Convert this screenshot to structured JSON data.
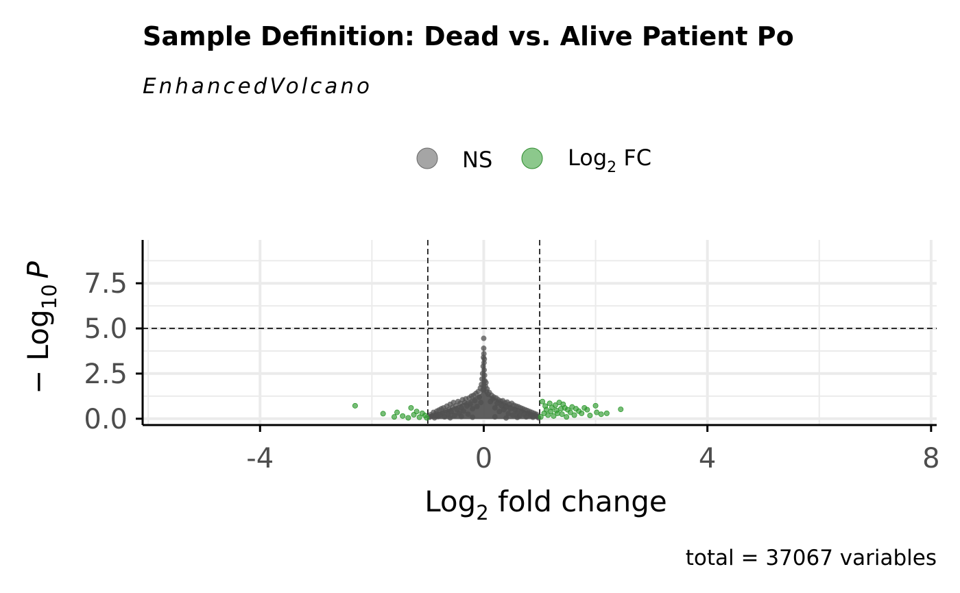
{
  "chart_data": {
    "type": "scatter",
    "title": "Sample Definition: Dead vs. Alive Patient Po",
    "subtitle": "EnhancedVolcano",
    "caption": "total = 37067 variables",
    "xlabel": {
      "base": "Log",
      "sub": "2",
      "rest": " fold change"
    },
    "ylabel": {
      "prefix": "− Log",
      "sub": "10",
      "suffix": "P"
    },
    "xlim": [
      -6.1,
      8.1
    ],
    "ylim": [
      -0.35,
      9.9
    ],
    "x_ticks": [
      -4,
      0,
      4,
      8
    ],
    "x_tick_labels": [
      "-4",
      "0",
      "4",
      "8"
    ],
    "y_ticks": [
      0,
      2.5,
      5,
      7.5
    ],
    "y_tick_labels": [
      "0.0",
      "2.5",
      "5.0",
      "7.5"
    ],
    "x_minor_ticks": [
      -6,
      -2,
      2,
      6
    ],
    "y_minor_ticks": [
      1.25,
      3.75,
      6.25,
      8.75
    ],
    "fc_cutoff": [
      -1,
      1
    ],
    "p_cutoff": 5,
    "legend": {
      "position": "top",
      "entries": [
        {
          "label": "NS",
          "color": "#7f7f7f"
        },
        {
          "label": "Log",
          "sub": "2",
          "after": " FC",
          "color": "#2e9a2e"
        }
      ]
    },
    "colors": {
      "ns": "#505050",
      "fc": "#2e9a2e",
      "grid": "#ebebeb",
      "axis": "#000000"
    },
    "series": [
      {
        "name": "NS",
        "points": [
          [
            -0.97,
            0.08
          ],
          [
            -0.95,
            0.22
          ],
          [
            -0.92,
            0.15
          ],
          [
            -0.9,
            0.35
          ],
          [
            -0.88,
            0.05
          ],
          [
            -0.86,
            0.28
          ],
          [
            -0.84,
            0.42
          ],
          [
            -0.82,
            0.12
          ],
          [
            -0.8,
            0.48
          ],
          [
            -0.78,
            0.2
          ],
          [
            -0.76,
            0.55
          ],
          [
            -0.74,
            0.32
          ],
          [
            -0.72,
            0.6
          ],
          [
            -0.7,
            0.1
          ],
          [
            -0.68,
            0.45
          ],
          [
            -0.66,
            0.7
          ],
          [
            -0.64,
            0.25
          ],
          [
            -0.62,
            0.52
          ],
          [
            -0.6,
            0.8
          ],
          [
            -0.58,
            0.38
          ],
          [
            -0.56,
            0.62
          ],
          [
            -0.54,
            0.9
          ],
          [
            -0.52,
            0.18
          ],
          [
            -0.5,
            0.72
          ],
          [
            -0.48,
            0.5
          ],
          [
            -0.46,
            0.95
          ],
          [
            -0.44,
            0.3
          ],
          [
            -0.42,
            0.85
          ],
          [
            -0.4,
            0.6
          ],
          [
            -0.38,
            1.05
          ],
          [
            -0.36,
            0.42
          ],
          [
            -0.34,
            0.9
          ],
          [
            -0.32,
            1.1
          ],
          [
            -0.3,
            0.7
          ],
          [
            -0.28,
            0.25
          ],
          [
            -0.26,
            1.15
          ],
          [
            -0.24,
            0.82
          ],
          [
            -0.22,
            1.25
          ],
          [
            -0.2,
            0.55
          ],
          [
            -0.18,
            1.3
          ],
          [
            -0.16,
            1.0
          ],
          [
            -0.14,
            1.4
          ],
          [
            -0.12,
            0.68
          ],
          [
            -0.1,
            1.5
          ],
          [
            -0.08,
            1.2
          ],
          [
            -0.06,
            1.7
          ],
          [
            -0.05,
            0.9
          ],
          [
            -0.04,
            1.9
          ],
          [
            -0.03,
            2.2
          ],
          [
            -0.02,
            2.5
          ],
          [
            -0.015,
            1.6
          ],
          [
            -0.01,
            2.9
          ],
          [
            -0.005,
            3.4
          ],
          [
            0,
            4.45
          ],
          [
            0,
            3.9
          ],
          [
            0.003,
            3.6
          ],
          [
            0.005,
            3.1
          ],
          [
            0.008,
            2.7
          ],
          [
            0.01,
            3.3
          ],
          [
            0.015,
            2.4
          ],
          [
            0.02,
            2.1
          ],
          [
            0.03,
            1.8
          ],
          [
            0.04,
            2.0
          ],
          [
            0.05,
            1.5
          ],
          [
            0.06,
            1.65
          ],
          [
            0.08,
            1.35
          ],
          [
            0.1,
            1.45
          ],
          [
            0.12,
            0.95
          ],
          [
            0.14,
            1.3
          ],
          [
            0.16,
            1.1
          ],
          [
            0.18,
            1.2
          ],
          [
            0.2,
            0.6
          ],
          [
            0.22,
            1.15
          ],
          [
            0.24,
            0.85
          ],
          [
            0.26,
            1.05
          ],
          [
            0.28,
            0.4
          ],
          [
            0.3,
            0.98
          ],
          [
            0.32,
            0.72
          ],
          [
            0.34,
            1.0
          ],
          [
            0.36,
            0.5
          ],
          [
            0.38,
            0.88
          ],
          [
            0.4,
            0.65
          ],
          [
            0.42,
            0.92
          ],
          [
            0.44,
            0.28
          ],
          [
            0.46,
            0.8
          ],
          [
            0.48,
            0.55
          ],
          [
            0.5,
            0.85
          ],
          [
            0.52,
            0.2
          ],
          [
            0.54,
            0.75
          ],
          [
            0.56,
            0.48
          ],
          [
            0.58,
            0.7
          ],
          [
            0.6,
            0.35
          ],
          [
            0.62,
            0.66
          ],
          [
            0.64,
            0.15
          ],
          [
            0.66,
            0.6
          ],
          [
            0.68,
            0.42
          ],
          [
            0.7,
            0.55
          ],
          [
            0.72,
            0.25
          ],
          [
            0.74,
            0.5
          ],
          [
            0.76,
            0.1
          ],
          [
            0.78,
            0.45
          ],
          [
            0.8,
            0.3
          ],
          [
            0.82,
            0.4
          ],
          [
            0.84,
            0.18
          ],
          [
            0.86,
            0.35
          ],
          [
            0.88,
            0.08
          ],
          [
            0.9,
            0.3
          ],
          [
            0.92,
            0.2
          ],
          [
            0.94,
            0.25
          ],
          [
            0.96,
            0.12
          ],
          [
            0.98,
            0.05
          ],
          [
            -0.6,
            0.05
          ],
          [
            -0.4,
            0.12
          ],
          [
            -0.2,
            0.08
          ],
          [
            0.2,
            0.1
          ],
          [
            0.4,
            0.04
          ],
          [
            0.6,
            0.07
          ],
          [
            -0.85,
            0.18
          ],
          [
            0.85,
            0.22
          ]
        ]
      },
      {
        "name": "Log2 FC",
        "points": [
          [
            -2.3,
            0.72
          ],
          [
            -1.8,
            0.28
          ],
          [
            -1.6,
            0.1
          ],
          [
            -1.55,
            0.35
          ],
          [
            -1.45,
            0.15
          ],
          [
            -1.35,
            0.05
          ],
          [
            -1.3,
            0.6
          ],
          [
            -1.25,
            0.22
          ],
          [
            -1.2,
            0.4
          ],
          [
            -1.15,
            0.08
          ],
          [
            -1.1,
            0.3
          ],
          [
            -1.05,
            0.18
          ],
          [
            -1.02,
            0.05
          ],
          [
            1.02,
            0.1
          ],
          [
            1.05,
            0.95
          ],
          [
            1.08,
            0.3
          ],
          [
            1.1,
            0.7
          ],
          [
            1.12,
            0.5
          ],
          [
            1.15,
            0.2
          ],
          [
            1.18,
            0.85
          ],
          [
            1.2,
            0.4
          ],
          [
            1.22,
            0.62
          ],
          [
            1.25,
            0.15
          ],
          [
            1.28,
            0.75
          ],
          [
            1.3,
            0.45
          ],
          [
            1.32,
            0.3
          ],
          [
            1.35,
            0.9
          ],
          [
            1.38,
            0.55
          ],
          [
            1.4,
            0.25
          ],
          [
            1.42,
            0.8
          ],
          [
            1.45,
            0.6
          ],
          [
            1.48,
            0.1
          ],
          [
            1.5,
            0.5
          ],
          [
            1.55,
            0.35
          ],
          [
            1.58,
            0.65
          ],
          [
            1.62,
            0.2
          ],
          [
            1.65,
            0.55
          ],
          [
            1.7,
            0.42
          ],
          [
            1.75,
            0.3
          ],
          [
            1.8,
            0.6
          ],
          [
            1.85,
            0.5
          ],
          [
            1.9,
            0.18
          ],
          [
            2.0,
            0.72
          ],
          [
            2.02,
            0.35
          ],
          [
            2.1,
            0.25
          ],
          [
            2.2,
            0.3
          ],
          [
            2.45,
            0.52
          ]
        ]
      }
    ]
  }
}
